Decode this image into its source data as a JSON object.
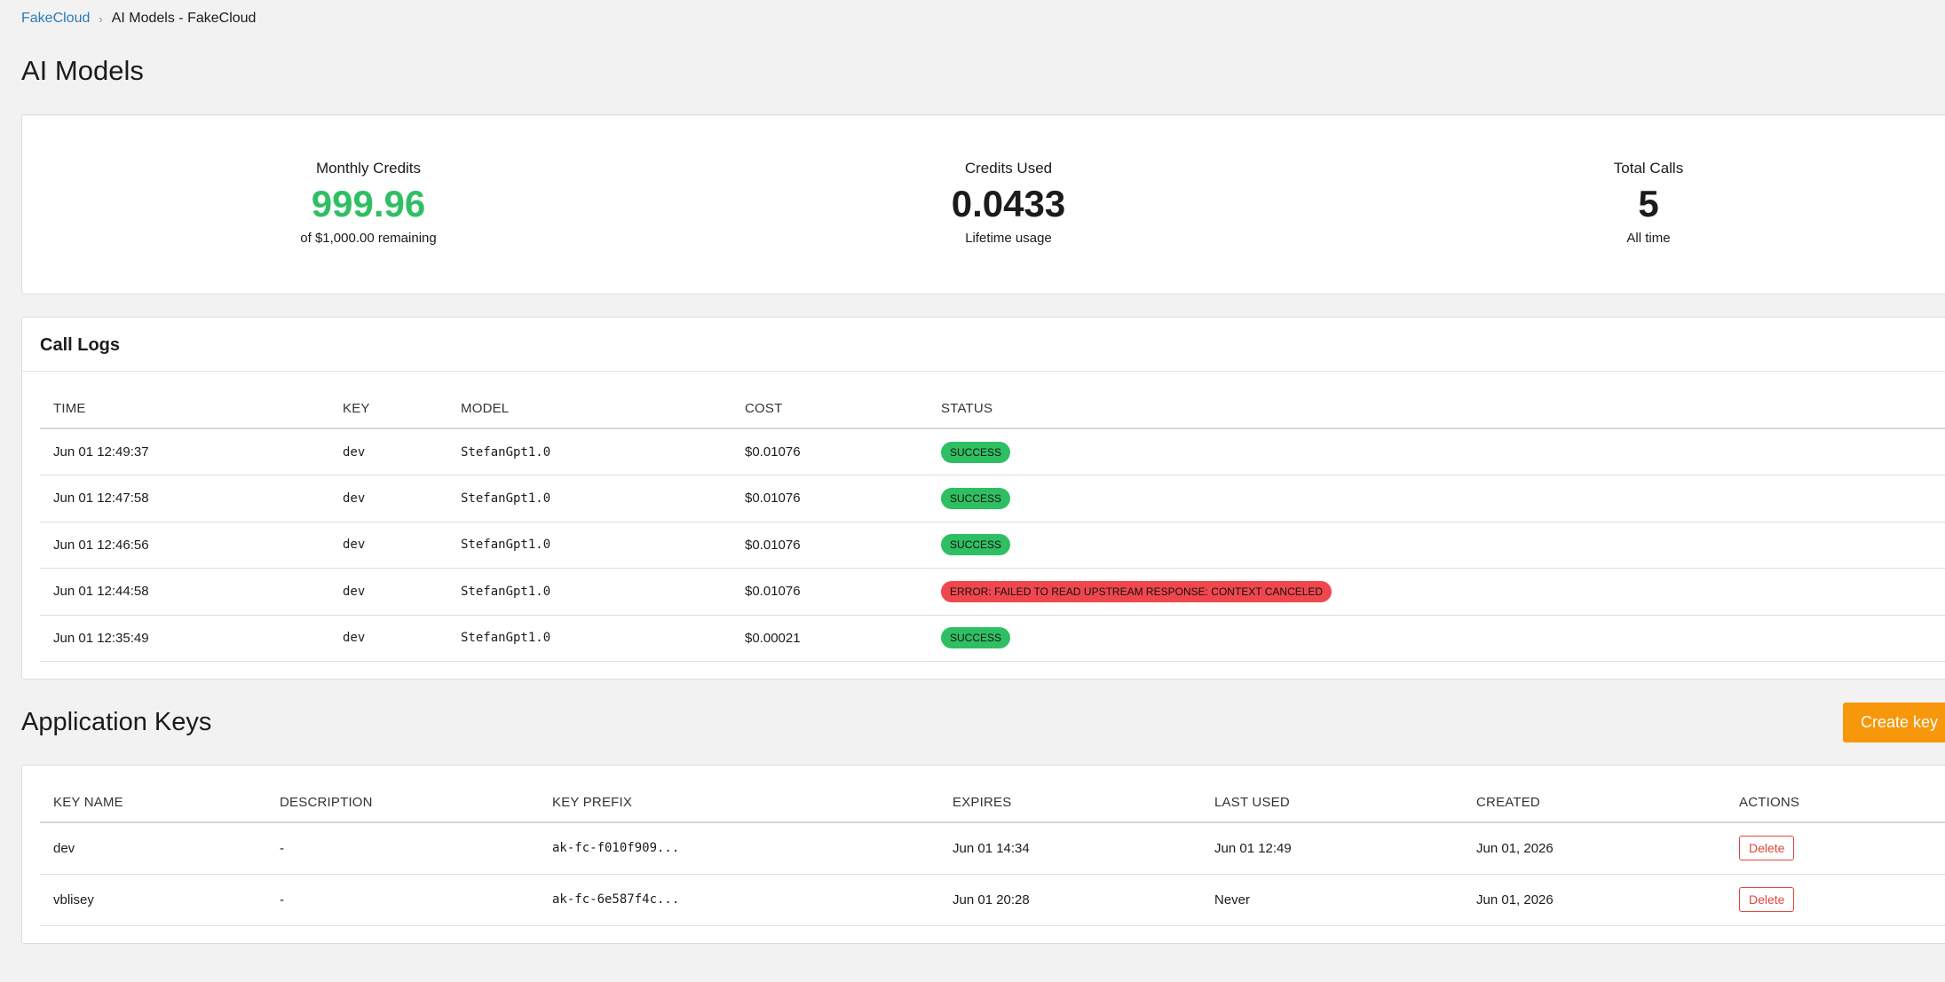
{
  "breadcrumb": {
    "home": "FakeCloud",
    "separator": "›",
    "current": "AI Models - FakeCloud"
  },
  "page_title": "AI Models",
  "stats": {
    "monthly_credits": {
      "label": "Monthly Credits",
      "value": "999.96",
      "sub": "of $1,000.00 remaining"
    },
    "credits_used": {
      "label": "Credits Used",
      "value": "0.0433",
      "sub": "Lifetime usage"
    },
    "total_calls": {
      "label": "Total Calls",
      "value": "5",
      "sub": "All time"
    }
  },
  "call_logs": {
    "title": "Call Logs",
    "columns": [
      "TIME",
      "KEY",
      "MODEL",
      "COST",
      "STATUS"
    ],
    "rows": [
      {
        "time": "Jun 01 12:49:37",
        "key": "dev",
        "model": "StefanGpt1.0",
        "cost": "$0.01076",
        "status": "SUCCESS",
        "status_type": "success"
      },
      {
        "time": "Jun 01 12:47:58",
        "key": "dev",
        "model": "StefanGpt1.0",
        "cost": "$0.01076",
        "status": "SUCCESS",
        "status_type": "success"
      },
      {
        "time": "Jun 01 12:46:56",
        "key": "dev",
        "model": "StefanGpt1.0",
        "cost": "$0.01076",
        "status": "SUCCESS",
        "status_type": "success"
      },
      {
        "time": "Jun 01 12:44:58",
        "key": "dev",
        "model": "StefanGpt1.0",
        "cost": "$0.01076",
        "status": "ERROR: FAILED TO READ UPSTREAM RESPONSE: CONTEXT CANCELED",
        "status_type": "error"
      },
      {
        "time": "Jun 01 12:35:49",
        "key": "dev",
        "model": "StefanGpt1.0",
        "cost": "$0.00021",
        "status": "SUCCESS",
        "status_type": "success"
      }
    ]
  },
  "app_keys": {
    "title": "Application Keys",
    "create_label": "Create key",
    "columns": [
      "KEY NAME",
      "DESCRIPTION",
      "KEY PREFIX",
      "EXPIRES",
      "LAST USED",
      "CREATED",
      "ACTIONS"
    ],
    "rows": [
      {
        "name": "dev",
        "description": "-",
        "prefix": "ak-fc-f010f909...",
        "expires": "Jun 01 14:34",
        "last_used": "Jun 01 12:49",
        "created": "Jun 01, 2026",
        "action": "Delete"
      },
      {
        "name": "vblisey",
        "description": "-",
        "prefix": "ak-fc-6e587f4c...",
        "expires": "Jun 01 20:28",
        "last_used": "Never",
        "created": "Jun 01, 2026",
        "action": "Delete"
      }
    ]
  },
  "colors": {
    "accent_link": "#2b7bb9",
    "success": "#2fbf63",
    "error": "#f0474e",
    "primary_button": "#f6970c",
    "danger": "#e2453c"
  }
}
